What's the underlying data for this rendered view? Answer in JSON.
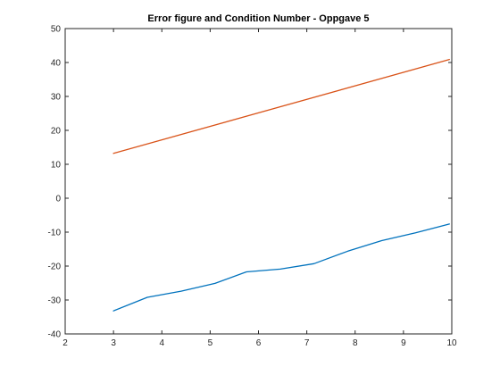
{
  "chart_data": {
    "type": "line",
    "title": "Error figure and Condition Number - Oppgave 5",
    "xlabel": "",
    "ylabel": "",
    "xlim": [
      2,
      10
    ],
    "ylim": [
      -40,
      50
    ],
    "xticks": [
      2,
      3,
      4,
      5,
      6,
      7,
      8,
      9,
      10
    ],
    "yticks": [
      -40,
      -30,
      -20,
      -10,
      0,
      10,
      20,
      30,
      40,
      50
    ],
    "grid": false,
    "legend": "none",
    "series": [
      {
        "color": "#0072BD",
        "x": [
          3,
          3.7,
          4.4,
          5.1,
          5.75,
          6.45,
          7.15,
          7.85,
          8.55,
          9.25,
          9.95
        ],
        "y": [
          -33.2,
          -29.2,
          -27.4,
          -25.1,
          -21.7,
          -20.9,
          -19.3,
          -15.6,
          -12.5,
          -10.2,
          -7.6
        ]
      },
      {
        "color": "#D95319",
        "x": [
          3,
          9.95
        ],
        "y": [
          13.2,
          40.9
        ]
      }
    ]
  }
}
